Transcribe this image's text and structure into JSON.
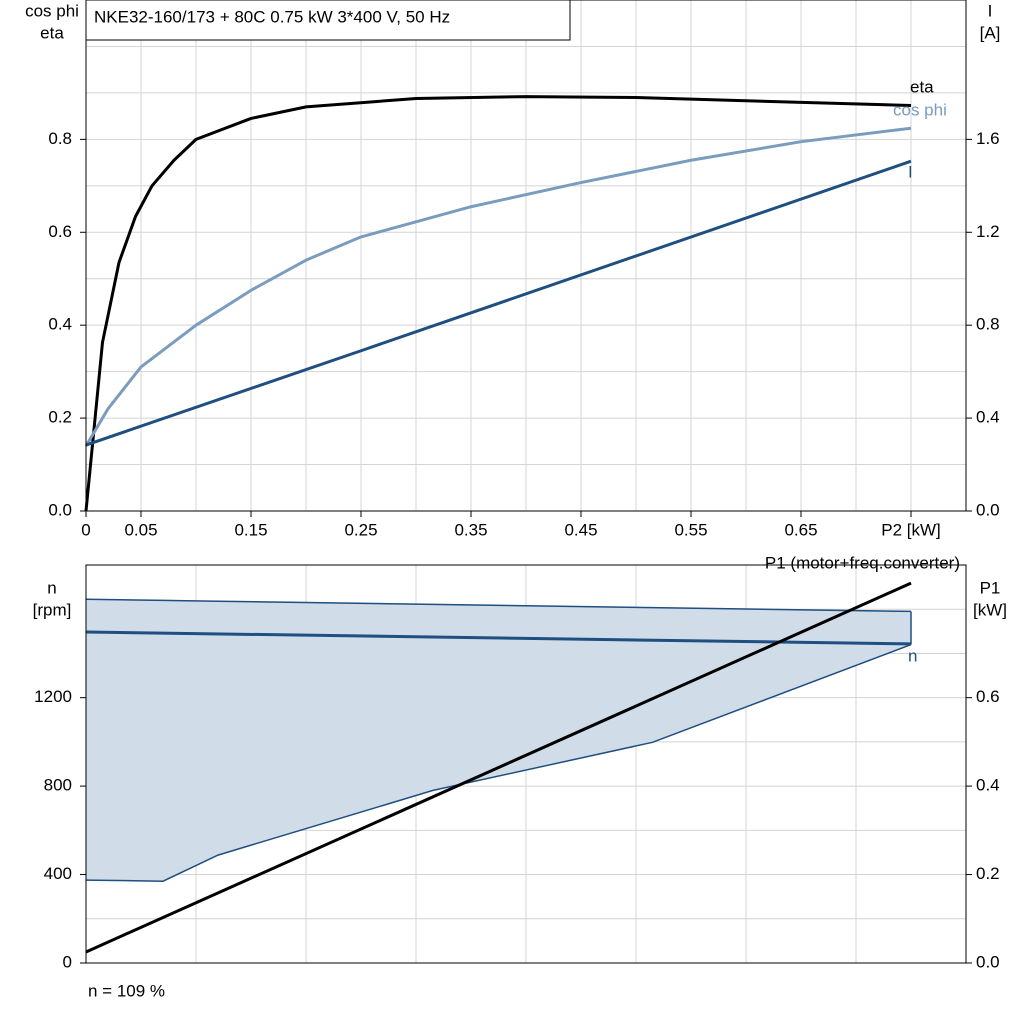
{
  "chart_data": [
    {
      "type": "line",
      "title": "NKE32-160/173 + 80C   0.75 kW   3*400 V, 50 Hz",
      "ylabel": [
        "cos phi",
        "eta"
      ],
      "y2label": [
        "I",
        "[A]"
      ],
      "xlim": [
        0,
        0.8
      ],
      "xticks": [
        {
          "value": 0,
          "label": "0"
        },
        0.05,
        0.15,
        0.25,
        0.35,
        0.45,
        0.55,
        0.65,
        {
          "value": 0.75,
          "label": "P2 [kW]"
        }
      ],
      "xgrid_minor": [
        0.1,
        0.2,
        0.3,
        0.4,
        0.5,
        0.6,
        0.7
      ],
      "ylim": [
        0,
        1.1
      ],
      "yticks": [
        {
          "value": 0,
          "label": "0.0"
        },
        0.2,
        0.4,
        0.6,
        0.8
      ],
      "ygrid_minor": [
        0.1,
        0.3,
        0.5,
        0.7,
        0.9,
        1.0
      ],
      "y2lim": [
        0,
        2.2
      ],
      "y2ticks": [
        {
          "value": 0,
          "label": "0.0"
        },
        0.4,
        0.8,
        1.2,
        1.6
      ],
      "grid": true,
      "series": [
        {
          "name": "eta",
          "color": "#000000",
          "x": [
            0,
            0.015,
            0.03,
            0.045,
            0.06,
            0.08,
            0.1,
            0.15,
            0.2,
            0.3,
            0.4,
            0.5,
            0.6,
            0.75
          ],
          "values": [
            0,
            0.363,
            0.535,
            0.634,
            0.7,
            0.755,
            0.8,
            0.845,
            0.87,
            0.888,
            0.892,
            0.89,
            0.883,
            0.873
          ]
        },
        {
          "name": "cos phi",
          "color": "#7a9cbf",
          "x": [
            0,
            0.02,
            0.05,
            0.1,
            0.15,
            0.2,
            0.25,
            0.35,
            0.45,
            0.55,
            0.65,
            0.75
          ],
          "values": [
            0.14,
            0.22,
            0.31,
            0.4,
            0.475,
            0.54,
            0.59,
            0.655,
            0.707,
            0.755,
            0.795,
            0.824
          ]
        },
        {
          "name": "I",
          "color": "#1f4e80",
          "axis": "y2",
          "x": [
            0,
            0.25,
            0.75
          ],
          "values": [
            0.284,
            0.69,
            1.506
          ]
        }
      ]
    },
    {
      "type": "line",
      "ylabel": [
        "n",
        "[rpm]"
      ],
      "y2label": [
        "P1",
        "[kW]"
      ],
      "footer": "n = 109 %",
      "xlim": [
        0,
        0.8
      ],
      "xgrid_minor": [
        0.1,
        0.2,
        0.3,
        0.4,
        0.5,
        0.6,
        0.7
      ],
      "ylim": [
        0,
        1800
      ],
      "yticks": [
        0,
        400,
        800,
        1200
      ],
      "ygrid_minor": [
        200,
        600,
        1000,
        1400,
        1600
      ],
      "y2lim": [
        0,
        0.9
      ],
      "y2ticks": [
        {
          "value": 0,
          "label": "0.0"
        },
        0.2,
        0.4,
        0.6
      ],
      "grid": true,
      "band": {
        "color": "#d0dce8",
        "edge_color": "#1f4e80",
        "x": [
          0,
          0.07,
          0.12,
          0.315,
          0.515,
          0.75
        ],
        "upper": [
          1645,
          1640,
          1636,
          1622,
          1607,
          1590
        ],
        "lower": [
          375,
          370,
          488,
          780,
          998,
          1440
        ]
      },
      "series": [
        {
          "name": "n",
          "color": "#1f4e80",
          "x": [
            0,
            0.75
          ],
          "values": [
            1497,
            1443
          ]
        },
        {
          "name": "P1 (motor+freq.converter)",
          "color": "#000000",
          "axis": "y2",
          "x": [
            0,
            0.75
          ],
          "values": [
            0.025,
            0.859
          ]
        }
      ]
    }
  ]
}
